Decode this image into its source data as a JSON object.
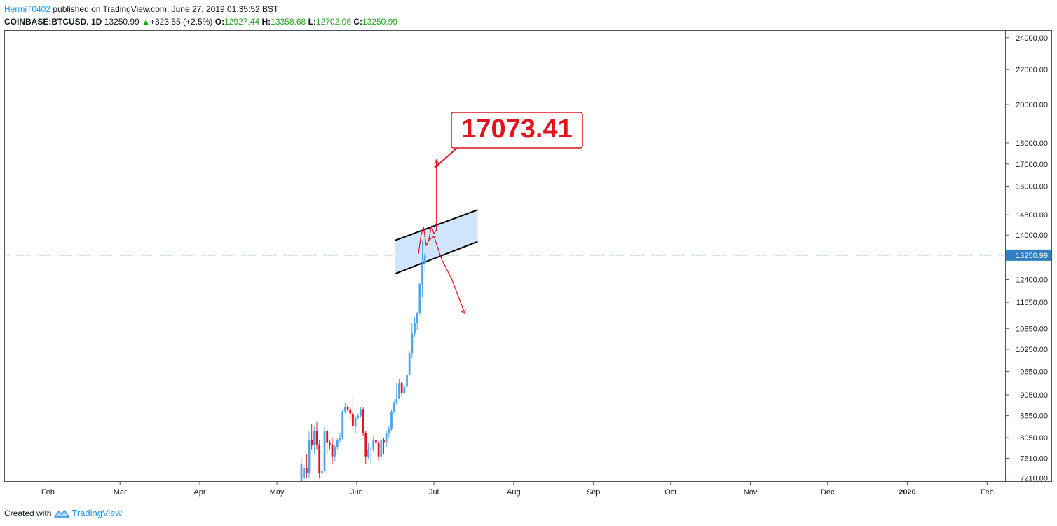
{
  "header": {
    "author": "HermiT0402",
    "published_text": "published on TradingView.com, June 27, 2019 01:35:52 BST",
    "symbol": "COINBASE:BTCUSD, 1D",
    "last": "13250.99",
    "up_arrow": "▲",
    "change": "+323.55 (+2.5%)",
    "o_label": "O:",
    "o_value": "12927.44",
    "h_label": "H:",
    "h_value": "13358.68",
    "l_label": "L:",
    "l_value": "12702.06",
    "c_label": "C:",
    "c_value": "13250.99"
  },
  "footer": {
    "created_with": "Created with",
    "brand": "TradingView"
  },
  "colors": {
    "up": "#4ea4e8",
    "down": "#e0141e",
    "annotation": "#e0141e",
    "channel_fill": "#cfe5fb",
    "price_line": "#2f7fc2",
    "badge_bg": "#2f7fc2"
  },
  "chart_data": {
    "type": "candlestick",
    "y_scale": "log",
    "x_start": "2019-01-15",
    "x_end": "2020-02-08",
    "ylim": [
      7150,
      24500
    ],
    "y_ticks": [
      "24000.00",
      "22000.00",
      "20000.00",
      "18000.00",
      "17000.00",
      "16000.00",
      "14800.00",
      "14000.00",
      "12400.00",
      "11650.00",
      "10850.00",
      "10250.00",
      "9650.00",
      "9050.00",
      "8550.00",
      "8050.00",
      "7610.00",
      "7210.00"
    ],
    "x_ticks": [
      {
        "label": "Feb",
        "date": "2019-02-01"
      },
      {
        "label": "Mar",
        "date": "2019-03-01"
      },
      {
        "label": "Apr",
        "date": "2019-04-01"
      },
      {
        "label": "May",
        "date": "2019-05-01"
      },
      {
        "label": "Jun",
        "date": "2019-06-01"
      },
      {
        "label": "Jul",
        "date": "2019-07-01"
      },
      {
        "label": "Aug",
        "date": "2019-08-01"
      },
      {
        "label": "Sep",
        "date": "2019-09-01"
      },
      {
        "label": "Oct",
        "date": "2019-10-01"
      },
      {
        "label": "Nov",
        "date": "2019-11-01"
      },
      {
        "label": "Dec",
        "date": "2019-12-01"
      },
      {
        "label": "2020",
        "date": "2020-01-01"
      },
      {
        "label": "Feb",
        "date": "2020-02-01"
      }
    ],
    "current_price": 13250.99,
    "current_price_label": "13250.99",
    "candles": [
      {
        "date": "2019-05-10",
        "o": 7100,
        "h": 7600,
        "l": 7000,
        "c": 7500
      },
      {
        "date": "2019-05-11",
        "o": 7200,
        "h": 7500,
        "l": 7100,
        "c": 7400
      },
      {
        "date": "2019-05-12",
        "o": 7400,
        "h": 7700,
        "l": 7200,
        "c": 7300
      },
      {
        "date": "2019-05-13",
        "o": 7300,
        "h": 8200,
        "l": 7200,
        "c": 8000
      },
      {
        "date": "2019-05-14",
        "o": 8000,
        "h": 8350,
        "l": 7800,
        "c": 7900
      },
      {
        "date": "2019-05-15",
        "o": 7900,
        "h": 8300,
        "l": 7700,
        "c": 8200
      },
      {
        "date": "2019-05-16",
        "o": 8200,
        "h": 8400,
        "l": 7800,
        "c": 7900
      },
      {
        "date": "2019-05-17",
        "o": 7900,
        "h": 8000,
        "l": 7200,
        "c": 7300
      },
      {
        "date": "2019-05-18",
        "o": 7300,
        "h": 7500,
        "l": 7200,
        "c": 7350
      },
      {
        "date": "2019-05-19",
        "o": 7350,
        "h": 8300,
        "l": 7300,
        "c": 8200
      },
      {
        "date": "2019-05-20",
        "o": 8200,
        "h": 8250,
        "l": 7700,
        "c": 7950
      },
      {
        "date": "2019-05-21",
        "o": 7950,
        "h": 8000,
        "l": 7800,
        "c": 7900
      },
      {
        "date": "2019-05-22",
        "o": 7900,
        "h": 8050,
        "l": 7500,
        "c": 7650
      },
      {
        "date": "2019-05-23",
        "o": 7650,
        "h": 7900,
        "l": 7550,
        "c": 7850
      },
      {
        "date": "2019-05-24",
        "o": 7850,
        "h": 8050,
        "l": 7800,
        "c": 8000
      },
      {
        "date": "2019-05-25",
        "o": 8000,
        "h": 8150,
        "l": 7950,
        "c": 8050
      },
      {
        "date": "2019-05-26",
        "o": 8050,
        "h": 8700,
        "l": 8000,
        "c": 8650
      },
      {
        "date": "2019-05-27",
        "o": 8650,
        "h": 8850,
        "l": 8600,
        "c": 8750
      },
      {
        "date": "2019-05-28",
        "o": 8750,
        "h": 8800,
        "l": 8650,
        "c": 8700
      },
      {
        "date": "2019-05-29",
        "o": 8700,
        "h": 8750,
        "l": 8450,
        "c": 8600
      },
      {
        "date": "2019-05-30",
        "o": 8600,
        "h": 9050,
        "l": 8200,
        "c": 8300
      },
      {
        "date": "2019-05-31",
        "o": 8300,
        "h": 8550,
        "l": 8150,
        "c": 8500
      },
      {
        "date": "2019-06-01",
        "o": 8500,
        "h": 8600,
        "l": 8450,
        "c": 8550
      },
      {
        "date": "2019-06-02",
        "o": 8550,
        "h": 8750,
        "l": 8500,
        "c": 8700
      },
      {
        "date": "2019-06-03",
        "o": 8700,
        "h": 8750,
        "l": 8100,
        "c": 8150
      },
      {
        "date": "2019-06-04",
        "o": 8150,
        "h": 8200,
        "l": 7500,
        "c": 7650
      },
      {
        "date": "2019-06-05",
        "o": 7650,
        "h": 7950,
        "l": 7600,
        "c": 7800
      },
      {
        "date": "2019-06-06",
        "o": 7800,
        "h": 7850,
        "l": 7500,
        "c": 7800
      },
      {
        "date": "2019-06-07",
        "o": 7800,
        "h": 8100,
        "l": 7750,
        "c": 8000
      },
      {
        "date": "2019-06-08",
        "o": 8000,
        "h": 8050,
        "l": 7900,
        "c": 7950
      },
      {
        "date": "2019-06-09",
        "o": 7950,
        "h": 7980,
        "l": 7550,
        "c": 7650
      },
      {
        "date": "2019-06-10",
        "o": 7650,
        "h": 8050,
        "l": 7600,
        "c": 8000
      },
      {
        "date": "2019-06-11",
        "o": 8000,
        "h": 8050,
        "l": 7700,
        "c": 7950
      },
      {
        "date": "2019-06-12",
        "o": 7950,
        "h": 8200,
        "l": 7850,
        "c": 8150
      },
      {
        "date": "2019-06-13",
        "o": 8150,
        "h": 8300,
        "l": 8050,
        "c": 8250
      },
      {
        "date": "2019-06-14",
        "o": 8250,
        "h": 8700,
        "l": 8200,
        "c": 8650
      },
      {
        "date": "2019-06-15",
        "o": 8650,
        "h": 8900,
        "l": 8600,
        "c": 8850
      },
      {
        "date": "2019-06-16",
        "o": 8850,
        "h": 9350,
        "l": 8800,
        "c": 8950
      },
      {
        "date": "2019-06-17",
        "o": 8950,
        "h": 9450,
        "l": 8950,
        "c": 9350
      },
      {
        "date": "2019-06-18",
        "o": 9350,
        "h": 9400,
        "l": 9000,
        "c": 9100
      },
      {
        "date": "2019-06-19",
        "o": 9100,
        "h": 9300,
        "l": 9050,
        "c": 9250
      },
      {
        "date": "2019-06-20",
        "o": 9250,
        "h": 9600,
        "l": 9200,
        "c": 9550
      },
      {
        "date": "2019-06-21",
        "o": 9550,
        "h": 10200,
        "l": 9550,
        "c": 10150
      },
      {
        "date": "2019-06-22",
        "o": 10150,
        "h": 11000,
        "l": 10000,
        "c": 10700
      },
      {
        "date": "2019-06-23",
        "o": 10700,
        "h": 11200,
        "l": 10600,
        "c": 11000
      },
      {
        "date": "2019-06-24",
        "o": 11000,
        "h": 11350,
        "l": 10800,
        "c": 11300
      },
      {
        "date": "2019-06-25",
        "o": 11300,
        "h": 12300,
        "l": 11250,
        "c": 12250
      },
      {
        "date": "2019-06-26",
        "o": 12250,
        "h": 13800,
        "l": 11800,
        "c": 12927
      },
      {
        "date": "2019-06-27",
        "o": 12927.44,
        "h": 13358.68,
        "l": 12702.06,
        "c": 13250.99
      }
    ],
    "annotations": {
      "callout_value": "17073.41",
      "callout_anchor": {
        "date": "2019-07-01",
        "price": 17073.41
      },
      "channel": {
        "upper": [
          {
            "date": "2019-06-16",
            "price": 13800
          },
          {
            "date": "2019-07-18",
            "price": 15000
          }
        ],
        "lower": [
          {
            "date": "2019-06-16",
            "price": 12600
          },
          {
            "date": "2019-07-18",
            "price": 13750
          }
        ]
      },
      "projection_up": [
        {
          "date": "2019-06-25",
          "price": 13300
        },
        {
          "date": "2019-06-26",
          "price": 14000
        },
        {
          "date": "2019-06-27",
          "price": 14300
        },
        {
          "date": "2019-06-28",
          "price": 13600
        },
        {
          "date": "2019-06-29",
          "price": 13800
        },
        {
          "date": "2019-06-30",
          "price": 14350
        },
        {
          "date": "2019-07-01",
          "price": 14050
        },
        {
          "date": "2019-07-02",
          "price": 14200
        },
        {
          "date": "2019-07-02",
          "price": 17200
        }
      ],
      "projection_down": [
        {
          "date": "2019-06-29",
          "price": 13800
        },
        {
          "date": "2019-07-01",
          "price": 13950
        },
        {
          "date": "2019-07-04",
          "price": 13100
        },
        {
          "date": "2019-07-08",
          "price": 12400
        },
        {
          "date": "2019-07-13",
          "price": 11300
        }
      ]
    }
  }
}
